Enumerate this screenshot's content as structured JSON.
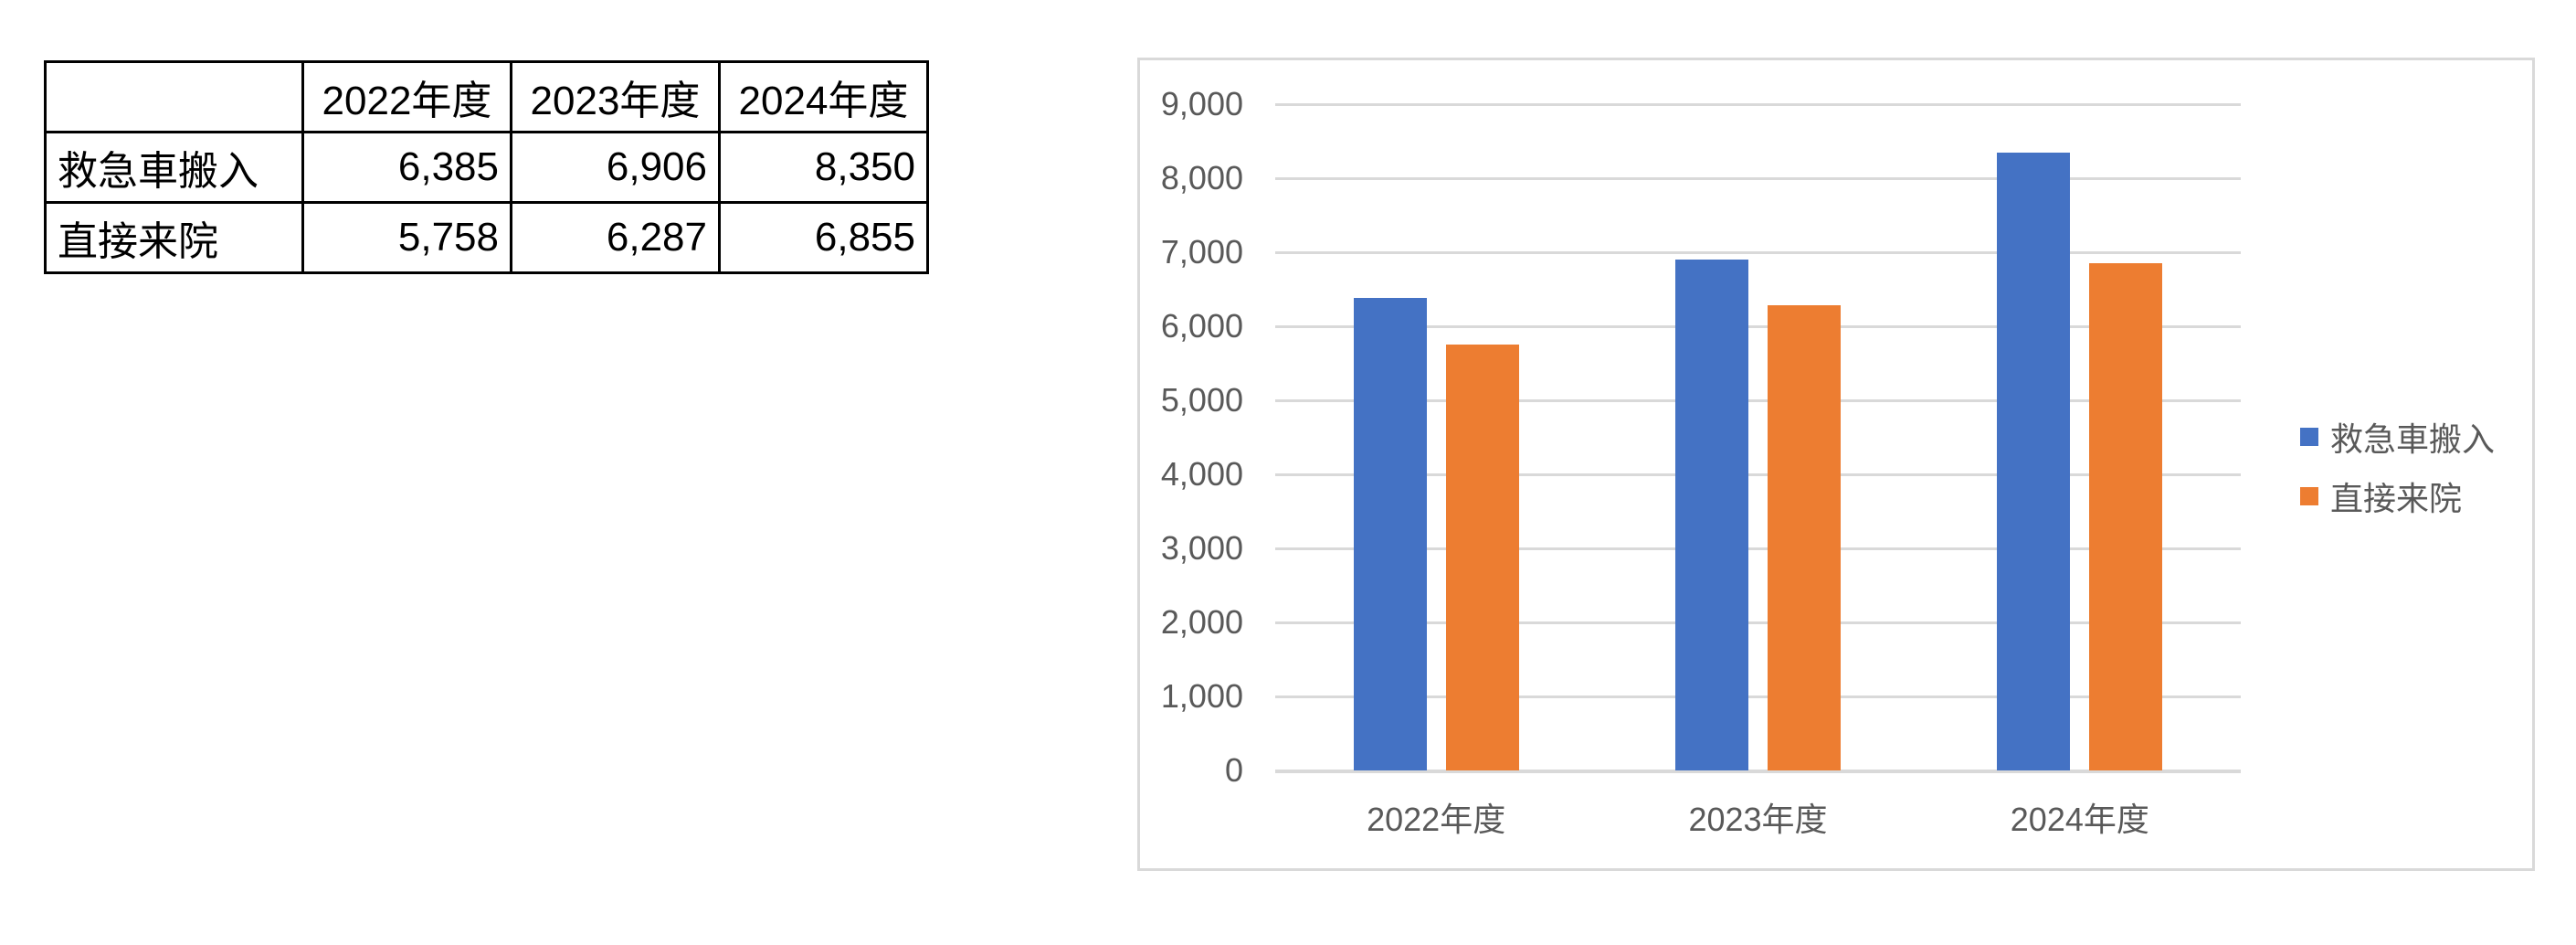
{
  "table": {
    "corner": "",
    "headers": [
      "2022年度",
      "2023年度",
      "2024年度"
    ],
    "rows": [
      {
        "label": "救急車搬入",
        "values": [
          "6,385",
          "6,906",
          "8,350"
        ]
      },
      {
        "label": "直接来院",
        "values": [
          "5,758",
          "6,287",
          "6,855"
        ]
      }
    ]
  },
  "chart_data": {
    "type": "bar",
    "title": "",
    "xlabel": "",
    "ylabel": "",
    "categories": [
      "2022年度",
      "2023年度",
      "2024年度"
    ],
    "series": [
      {
        "name": "救急車搬入",
        "color": "#4472C4",
        "values": [
          6385,
          6906,
          8350
        ]
      },
      {
        "name": "直接来院",
        "color": "#ED7D31",
        "values": [
          5758,
          6287,
          6855
        ]
      }
    ],
    "ylim": [
      0,
      9000
    ],
    "ytick_step": 1000,
    "ytick_labels": [
      "0",
      "1,000",
      "2,000",
      "3,000",
      "4,000",
      "5,000",
      "6,000",
      "7,000",
      "8,000",
      "9,000"
    ],
    "grid": true,
    "legend_position": "right"
  },
  "colors": {
    "axis_text": "#595959",
    "gridline": "#D9D9D9",
    "chart_border": "#D9D9D9",
    "table_border": "#000000",
    "background": "#FFFFFF"
  }
}
